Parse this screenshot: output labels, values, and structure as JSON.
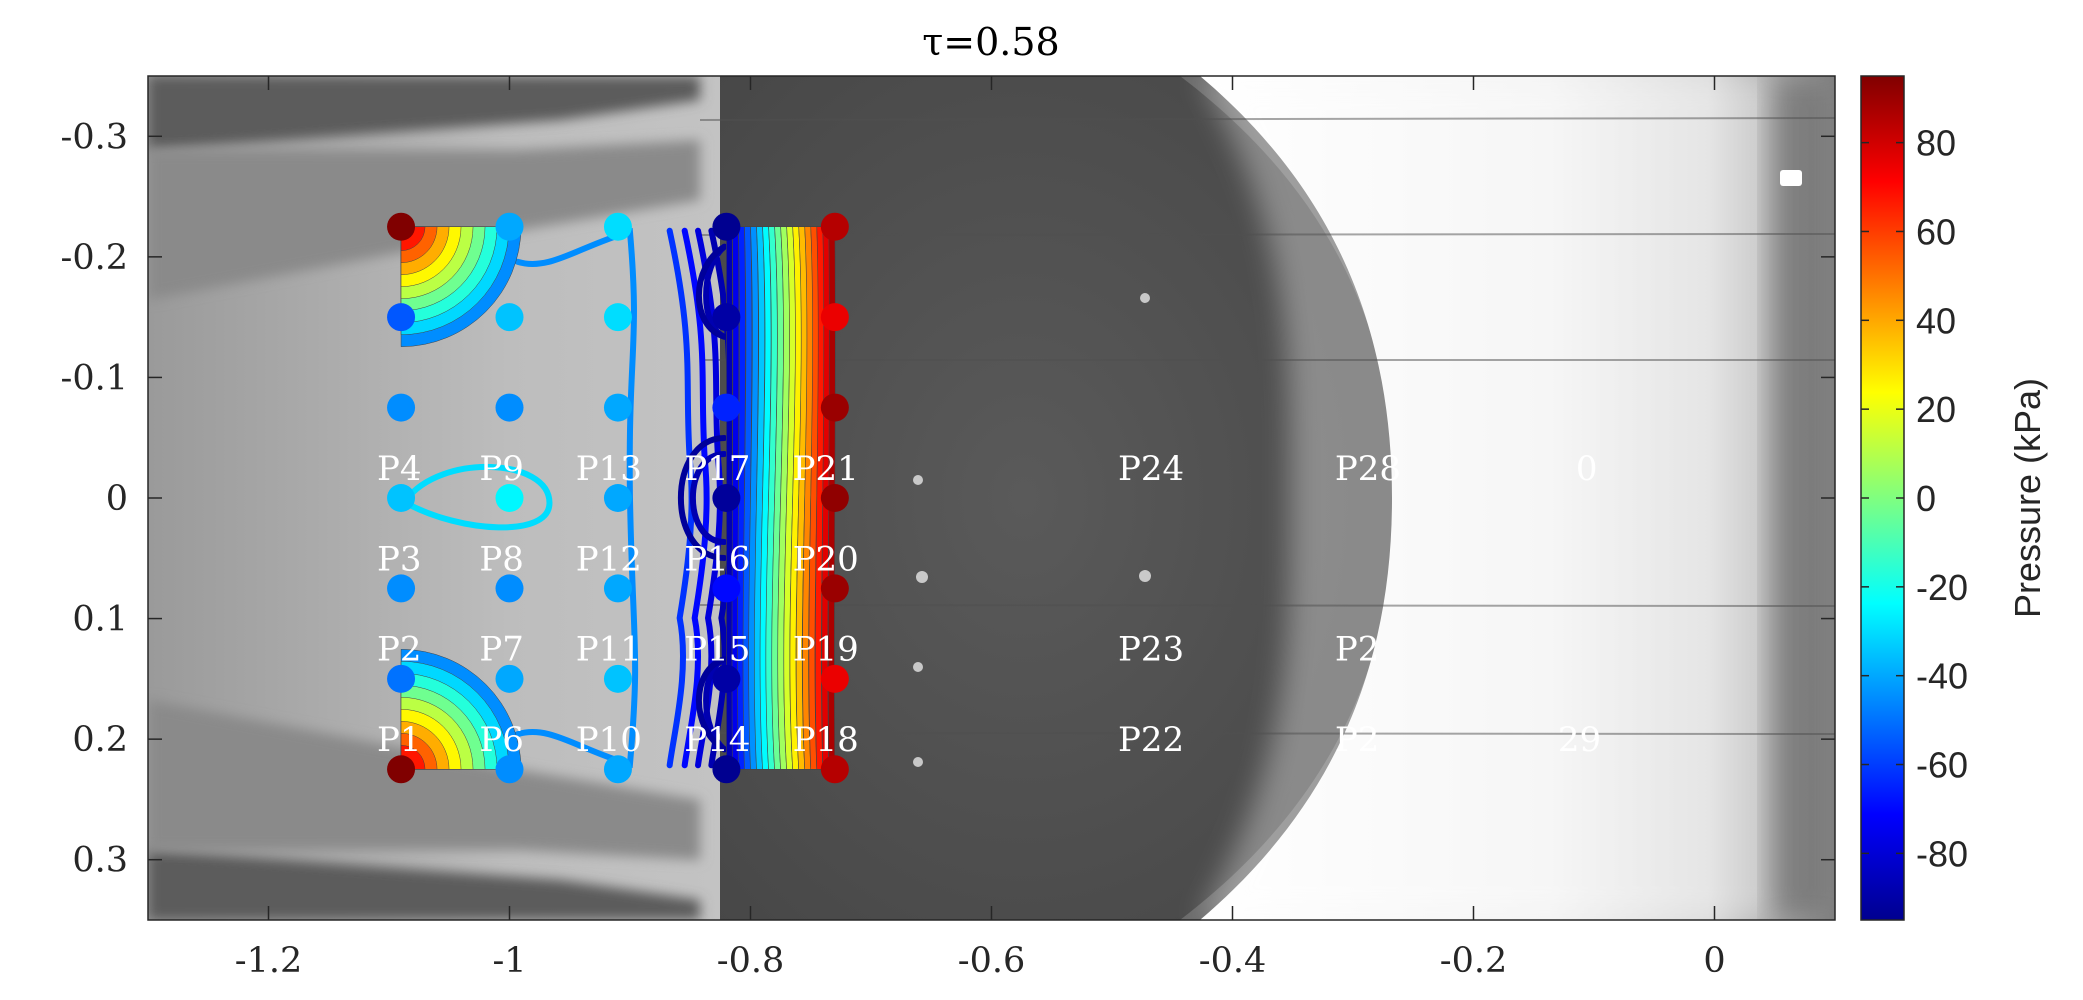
{
  "chart_data": {
    "type": "heatmap",
    "title": "τ=0.58",
    "xlabel": "",
    "ylabel": "",
    "xlim": [
      -1.3,
      0.1
    ],
    "ylim": [
      -0.35,
      0.35
    ],
    "y_reversed": true,
    "x_ticks": [
      -1.2,
      -1,
      -0.8,
      -0.6,
      -0.4,
      -0.2,
      0
    ],
    "x_tick_labels": [
      "-1.2",
      "-1",
      "-0.8",
      "-0.6",
      "-0.4",
      "-0.2",
      "0"
    ],
    "y_ticks": [
      -0.3,
      -0.2,
      -0.1,
      0,
      0.1,
      0.2,
      0.3
    ],
    "y_tick_labels": [
      "-0.3",
      "-0.2",
      "-0.1",
      "0",
      "0.1",
      "0.2",
      "0.3"
    ],
    "background": "grayscale shadowgraph image",
    "colormap": "jet",
    "colorbar": {
      "label": "Pressure (kPa)",
      "range": [
        -95,
        95
      ],
      "ticks": [
        -80,
        -60,
        -40,
        -20,
        0,
        20,
        40,
        60,
        80
      ],
      "tick_labels": [
        "-80",
        "-60",
        "-40",
        "-20",
        "0",
        "20",
        "40",
        "60",
        "80"
      ]
    },
    "sensor_grid": {
      "x": [
        -1.09,
        -1.0,
        -0.91,
        -0.82,
        -0.73
      ],
      "y": [
        -0.225,
        -0.15,
        -0.075,
        0,
        0.075,
        0.15,
        0.225
      ],
      "pressure_kPa": [
        [
          95,
          -40,
          -30,
          -92,
          85
        ],
        [
          -55,
          -35,
          -30,
          -88,
          75
        ],
        [
          -45,
          -45,
          -40,
          -65,
          90
        ],
        [
          -35,
          -25,
          -40,
          -90,
          92
        ],
        [
          -45,
          -45,
          -40,
          -70,
          90
        ],
        [
          -50,
          -40,
          -35,
          -88,
          75
        ],
        [
          95,
          -45,
          -40,
          -92,
          85
        ]
      ]
    },
    "point_labels": [
      {
        "text": "P1",
        "x": -1.11,
        "y": 0.2
      },
      {
        "text": "P2",
        "x": -1.11,
        "y": 0.125
      },
      {
        "text": "P3",
        "x": -1.11,
        "y": 0.05
      },
      {
        "text": "P4",
        "x": -1.11,
        "y": -0.025
      },
      {
        "text": "P6",
        "x": -1.025,
        "y": 0.2
      },
      {
        "text": "P7",
        "x": -1.025,
        "y": 0.125
      },
      {
        "text": "P8",
        "x": -1.025,
        "y": 0.05
      },
      {
        "text": "P9",
        "x": -1.025,
        "y": -0.025
      },
      {
        "text": "P10",
        "x": -0.945,
        "y": 0.2
      },
      {
        "text": "P11",
        "x": -0.945,
        "y": 0.125
      },
      {
        "text": "P12",
        "x": -0.945,
        "y": 0.05
      },
      {
        "text": "P13",
        "x": -0.945,
        "y": -0.025
      },
      {
        "text": "P14",
        "x": -0.855,
        "y": 0.2
      },
      {
        "text": "P15",
        "x": -0.855,
        "y": 0.125
      },
      {
        "text": "P16",
        "x": -0.855,
        "y": 0.05
      },
      {
        "text": "P17",
        "x": -0.855,
        "y": -0.025
      },
      {
        "text": "P18",
        "x": -0.765,
        "y": 0.2
      },
      {
        "text": "P19",
        "x": -0.765,
        "y": 0.125
      },
      {
        "text": "P20",
        "x": -0.765,
        "y": 0.05
      },
      {
        "text": "P21",
        "x": -0.765,
        "y": -0.025
      },
      {
        "text": "P22",
        "x": -0.495,
        "y": 0.2
      },
      {
        "text": "P23",
        "x": -0.495,
        "y": 0.125
      },
      {
        "text": "P24",
        "x": -0.495,
        "y": -0.025
      },
      {
        "text": "P2",
        "x": -0.315,
        "y": 0.2
      },
      {
        "text": "P2",
        "x": -0.315,
        "y": 0.125
      },
      {
        "text": "P28",
        "x": -0.315,
        "y": -0.025
      },
      {
        "text": "29",
        "x": -0.13,
        "y": 0.2
      },
      {
        "text": "0",
        "x": -0.115,
        "y": -0.025
      }
    ]
  }
}
